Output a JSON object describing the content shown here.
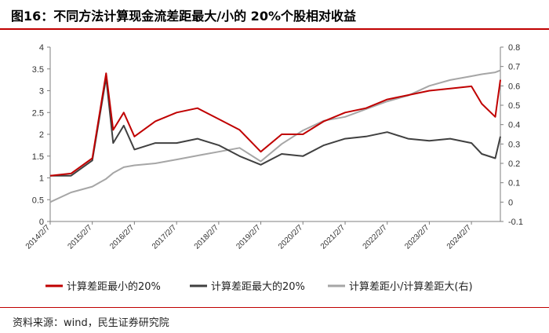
{
  "title": "图16：不同方法计算现金流差距最大/小的 20%个股相对收益",
  "source": "资料来源：wind，民生证券研究院",
  "colors": {
    "red": "#c00000",
    "dark": "#404040",
    "gray": "#a6a6a6",
    "rule": "#c00000"
  },
  "chart_data": {
    "type": "line",
    "x": [
      "2014/2/7",
      "2014/8/7",
      "2015/2/7",
      "2015/6/7",
      "2015/8/7",
      "2015/11/7",
      "2016/2/7",
      "2016/8/7",
      "2017/2/7",
      "2017/8/7",
      "2018/2/7",
      "2018/8/7",
      "2019/2/7",
      "2019/8/7",
      "2020/2/7",
      "2020/8/7",
      "2021/2/7",
      "2021/8/7",
      "2022/2/7",
      "2022/8/7",
      "2023/2/7",
      "2023/8/7",
      "2024/2/7",
      "2024/5/7",
      "2024/9/1",
      "2024/10/15"
    ],
    "x_ticks": [
      "2014/2/7",
      "2015/2/7",
      "2016/2/7",
      "2017/2/7",
      "2018/2/7",
      "2019/2/7",
      "2020/2/7",
      "2021/2/7",
      "2022/2/7",
      "2023/2/7",
      "2024/2/7"
    ],
    "ylim_left": [
      0,
      4
    ],
    "yticks_left": [
      "0",
      "0.5",
      "1",
      "1.5",
      "2",
      "2.5",
      "3",
      "3.5",
      "4"
    ],
    "ylim_right": [
      -0.1,
      0.8
    ],
    "yticks_right": [
      "-0.1",
      "0",
      "0.1",
      "0.2",
      "0.3",
      "0.4",
      "0.5",
      "0.6",
      "0.7",
      "0.8"
    ],
    "series": [
      {
        "name": "计算差距最小的20%",
        "axis": "left",
        "color": "#c00000",
        "values": [
          1.05,
          1.1,
          1.45,
          3.4,
          2.1,
          2.5,
          1.95,
          2.3,
          2.5,
          2.6,
          2.35,
          2.1,
          1.6,
          2.0,
          2.0,
          2.3,
          2.5,
          2.6,
          2.8,
          2.9,
          3.0,
          3.05,
          3.1,
          2.7,
          2.4,
          3.25
        ]
      },
      {
        "name": "计算差距最大的20%",
        "axis": "left",
        "color": "#404040",
        "values": [
          1.05,
          1.05,
          1.4,
          3.3,
          1.8,
          2.2,
          1.65,
          1.8,
          1.8,
          1.9,
          1.75,
          1.5,
          1.3,
          1.55,
          1.5,
          1.75,
          1.9,
          1.95,
          2.05,
          1.9,
          1.85,
          1.9,
          1.8,
          1.55,
          1.45,
          1.95
        ]
      },
      {
        "name": "计算差距小/计算差距大(右)",
        "axis": "right",
        "color": "#a6a6a6",
        "values": [
          0.0,
          0.05,
          0.08,
          0.12,
          0.15,
          0.18,
          0.19,
          0.2,
          0.22,
          0.24,
          0.26,
          0.28,
          0.21,
          0.3,
          0.37,
          0.42,
          0.44,
          0.48,
          0.52,
          0.55,
          0.6,
          0.63,
          0.65,
          0.66,
          0.67,
          0.68
        ]
      }
    ],
    "legend_position": "bottom",
    "grid": false
  }
}
